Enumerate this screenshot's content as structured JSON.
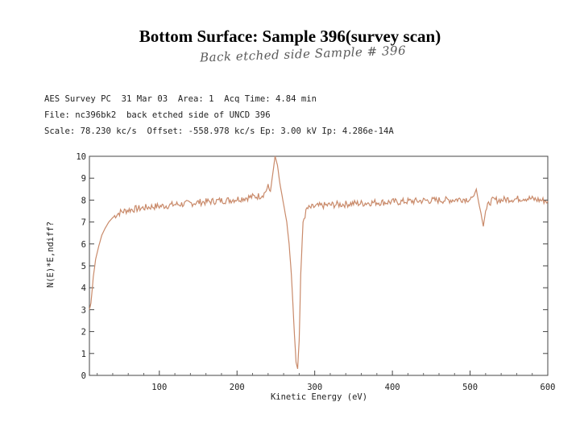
{
  "title": "Bottom Surface: Sample 396(survey scan)",
  "handwritten_note": "Back etched side Sample # 396",
  "header": {
    "line1": "AES Survey PC  31 Mar 03  Area: 1  Acq Time: 4.84 min",
    "line2": "File: nc396bk2  back etched side of UNCD 396",
    "line3": "Scale: 78.230 kc/s  Offset: -558.978 kc/s Ep: 3.00 kV Ip: 4.286e-14A"
  },
  "chart_data": {
    "type": "line",
    "title": "Bottom Surface: Sample 396(survey scan)",
    "xlabel": "Kinetic Energy (eV)",
    "ylabel": "N(E)*E,ndiff?",
    "xlim": [
      10,
      600
    ],
    "ylim": [
      0,
      10
    ],
    "xticks": [
      100,
      200,
      300,
      400,
      500,
      600
    ],
    "yticks": [
      0,
      1,
      2,
      3,
      4,
      5,
      6,
      7,
      8,
      9,
      10
    ],
    "line_color": "#c98a6a",
    "series": [
      {
        "name": "survey scan",
        "x": [
          10,
          12,
          15,
          18,
          22,
          26,
          30,
          35,
          40,
          45,
          50,
          55,
          60,
          70,
          80,
          90,
          100,
          110,
          120,
          130,
          140,
          150,
          160,
          170,
          180,
          190,
          200,
          210,
          220,
          230,
          235,
          240,
          243,
          246,
          249,
          252,
          255,
          258,
          261,
          264,
          267,
          270,
          272,
          274,
          276,
          278,
          280,
          282,
          285,
          290,
          300,
          310,
          320,
          330,
          340,
          350,
          360,
          370,
          380,
          390,
          400,
          410,
          420,
          430,
          440,
          450,
          460,
          470,
          480,
          490,
          500,
          505,
          508,
          511,
          514,
          517,
          520,
          525,
          530,
          540,
          550,
          560,
          570,
          580,
          590,
          600
        ],
        "y": [
          3.0,
          3.3,
          4.5,
          5.3,
          5.9,
          6.4,
          6.7,
          7.0,
          7.2,
          7.35,
          7.45,
          7.5,
          7.55,
          7.6,
          7.65,
          7.7,
          7.72,
          7.75,
          7.8,
          7.82,
          7.85,
          7.9,
          7.92,
          7.95,
          7.98,
          8.0,
          8.05,
          8.1,
          8.15,
          8.2,
          8.3,
          8.6,
          8.4,
          9.2,
          10.0,
          9.6,
          8.8,
          8.2,
          7.6,
          7.0,
          6.0,
          4.6,
          3.2,
          1.8,
          0.6,
          0.3,
          1.6,
          4.6,
          7.0,
          7.6,
          7.7,
          7.75,
          7.78,
          7.8,
          7.82,
          7.85,
          7.85,
          7.88,
          7.9,
          7.9,
          7.92,
          7.92,
          7.95,
          7.95,
          7.98,
          7.98,
          8.0,
          8.0,
          8.02,
          8.05,
          8.05,
          8.2,
          8.5,
          7.9,
          7.4,
          6.8,
          7.5,
          7.9,
          8.0,
          8.0,
          8.05,
          8.05,
          8.1,
          8.05,
          8.0,
          7.95
        ]
      }
    ]
  }
}
